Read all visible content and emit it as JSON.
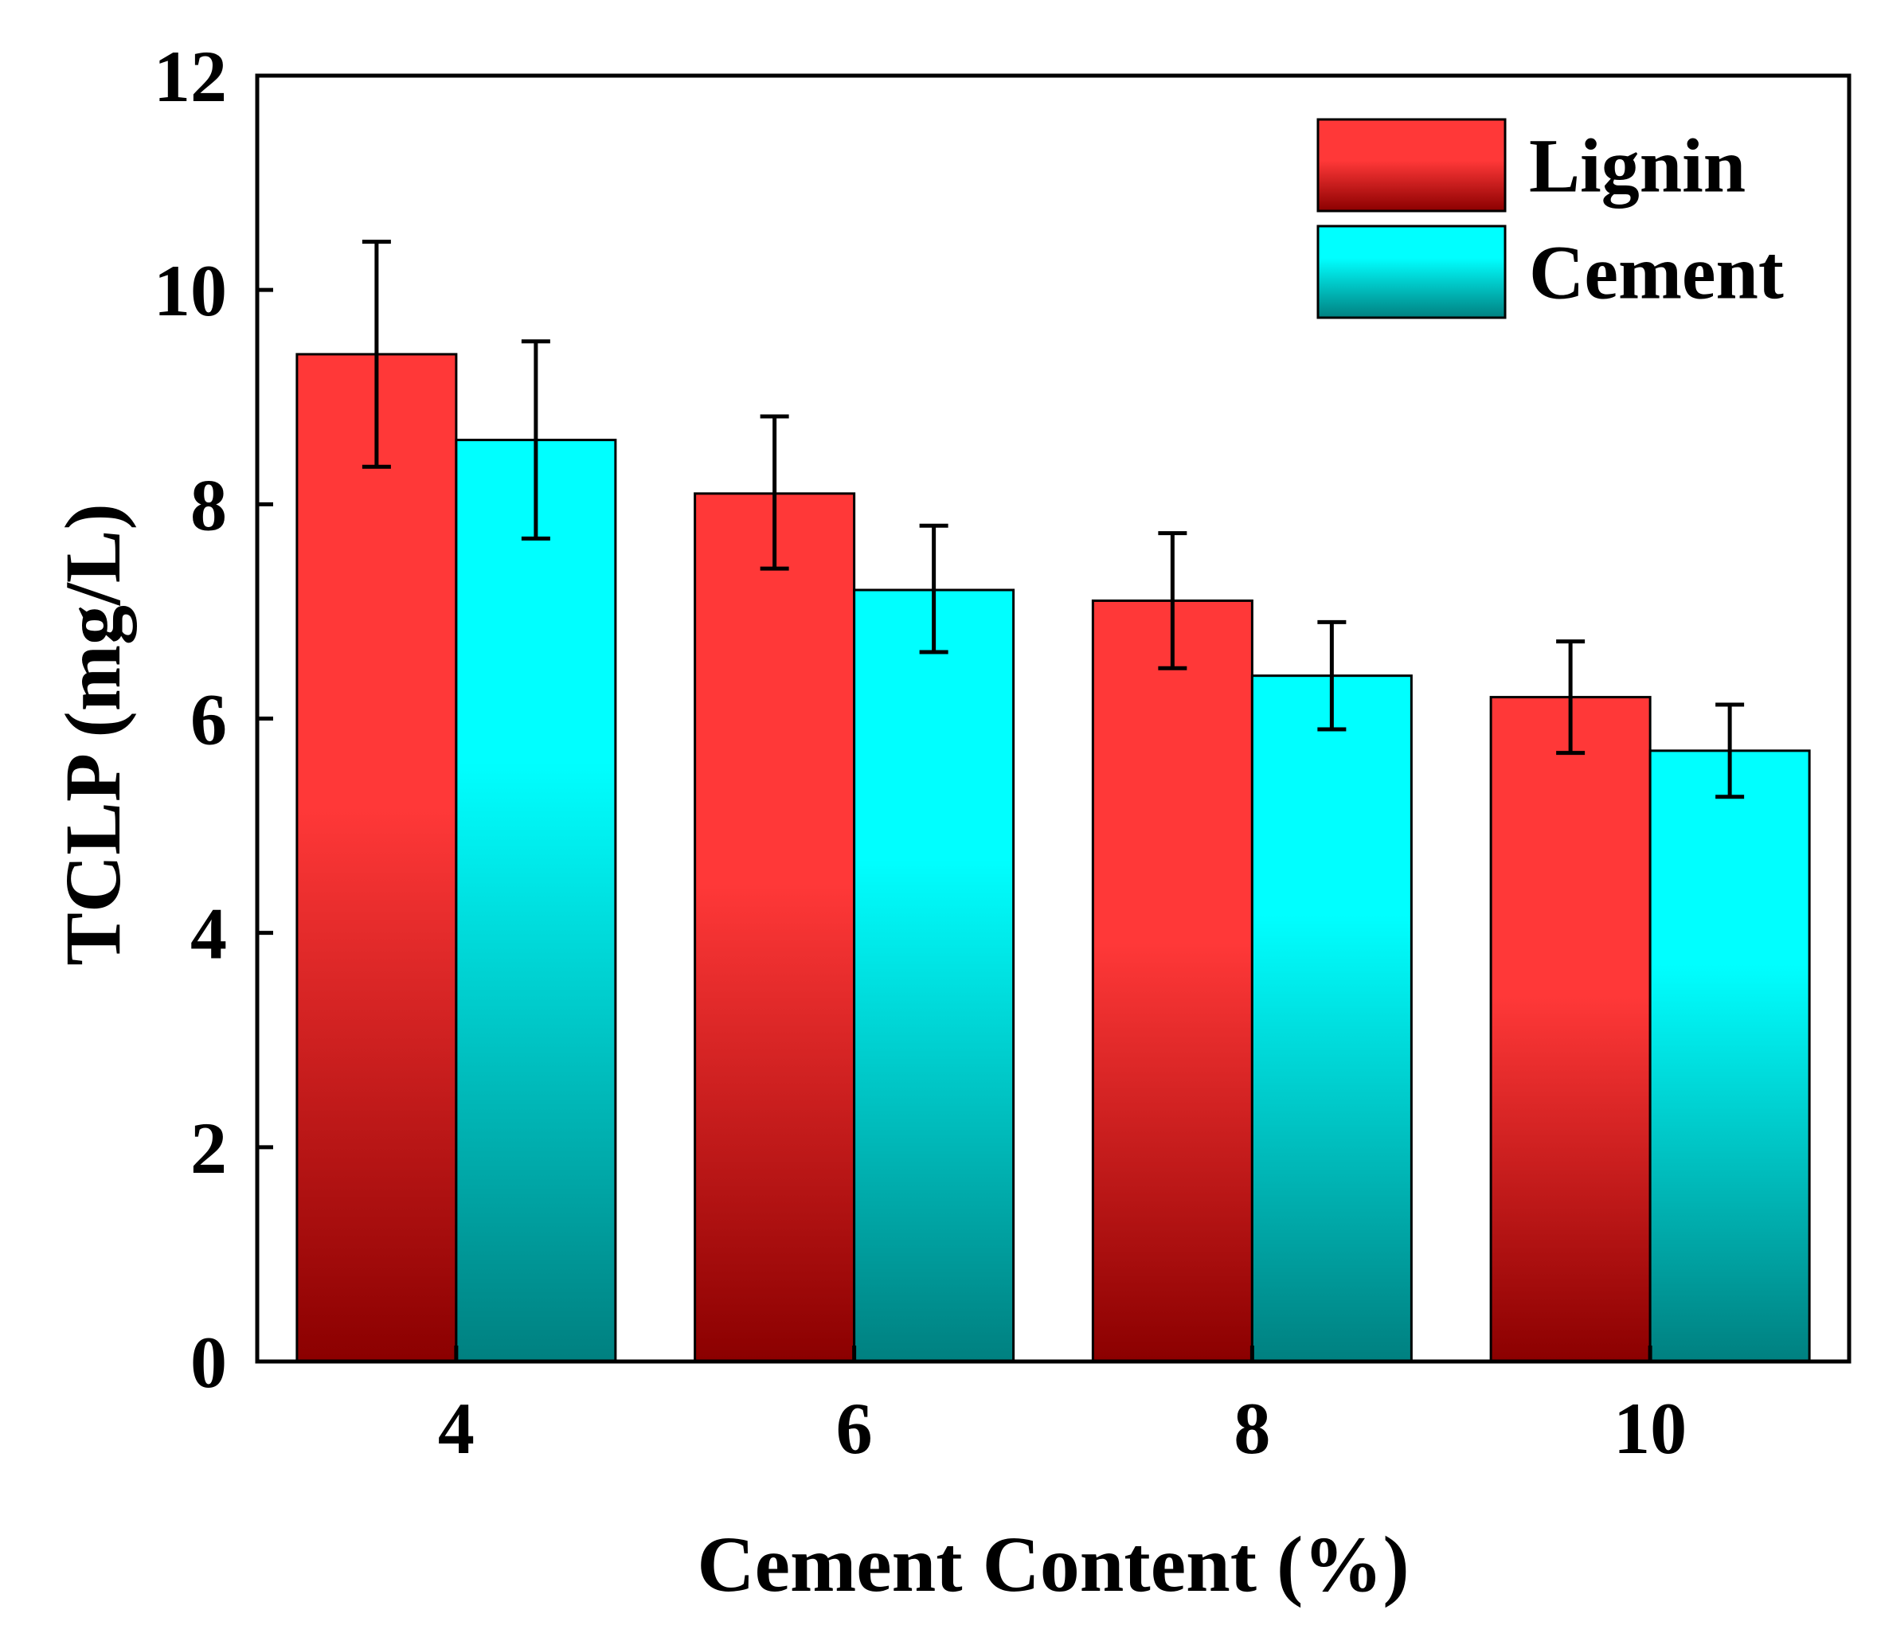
{
  "chart_data": {
    "type": "bar",
    "xlabel": "Cement Content (%)",
    "ylabel": "TCLP (mg/L)",
    "ylim": [
      0,
      12
    ],
    "yticks": [
      "0",
      "2",
      "4",
      "6",
      "8",
      "10",
      "12"
    ],
    "categories": [
      "4",
      "6",
      "8",
      "10"
    ],
    "legend_position": "top-right",
    "series": [
      {
        "name": "Lignin",
        "values": [
          9.4,
          8.1,
          7.1,
          6.2
        ],
        "err_low": [
          8.35,
          7.4,
          6.47,
          5.68
        ],
        "err_high": [
          10.45,
          8.82,
          7.73,
          6.72
        ],
        "color_top": "#ff3838",
        "color_bottom": "#8b0000"
      },
      {
        "name": "Cement",
        "values": [
          8.6,
          7.2,
          6.4,
          5.7
        ],
        "err_low": [
          7.68,
          6.62,
          5.9,
          5.27
        ],
        "err_high": [
          9.52,
          7.8,
          6.9,
          6.13
        ],
        "color_top": "#00ffff",
        "color_bottom": "#008080"
      }
    ]
  }
}
